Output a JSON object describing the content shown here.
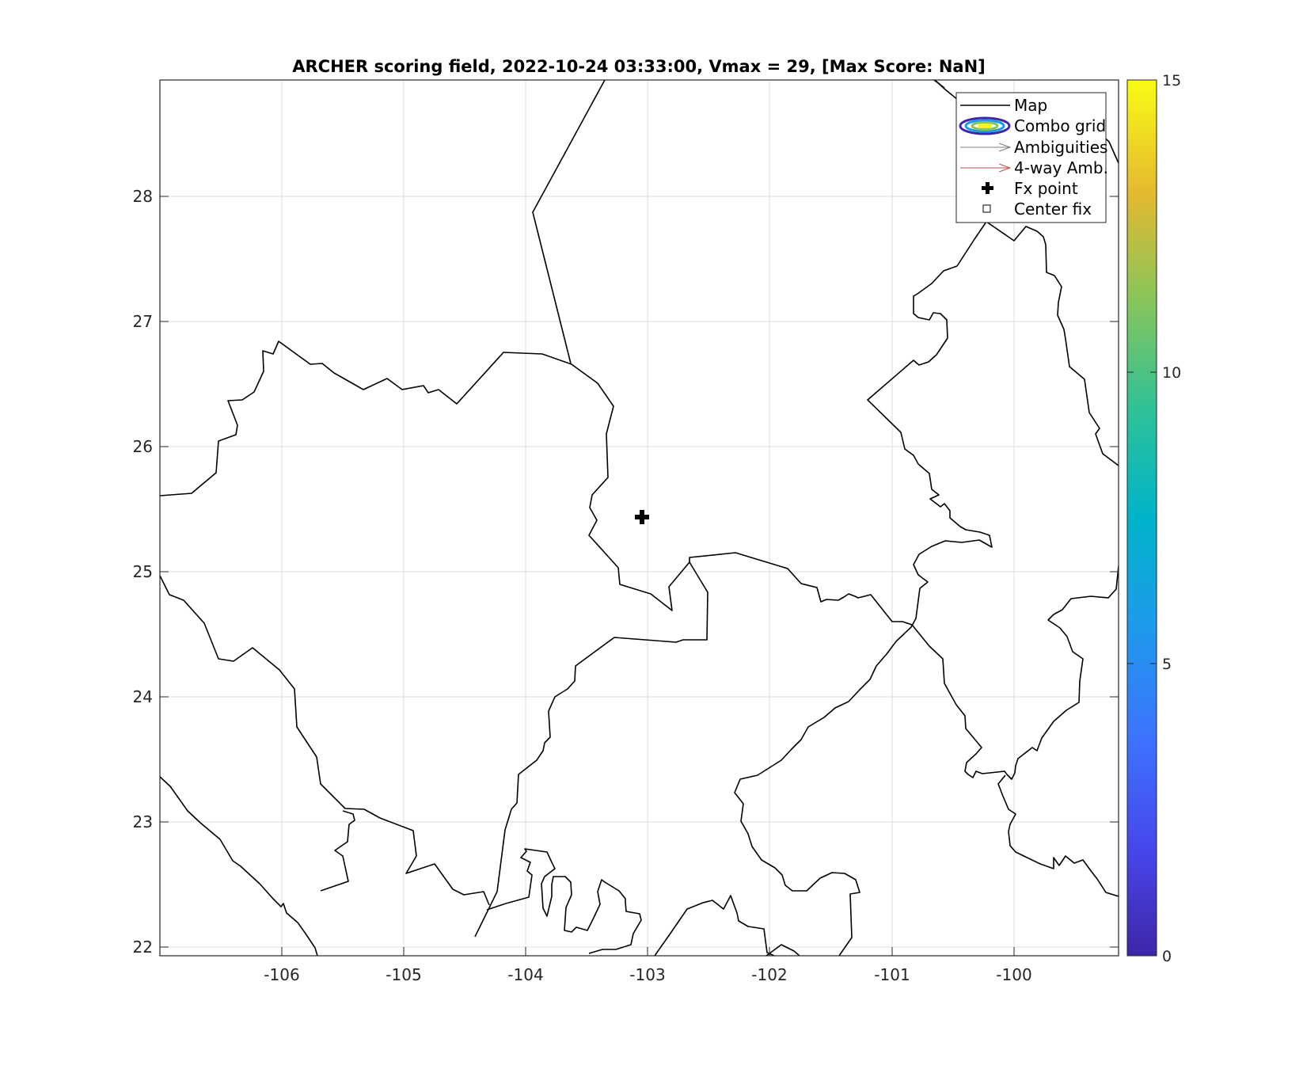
{
  "title": "ARCHER scoring field, 2022-10-24 03:33:00, Vmax = 29, [Max Score: NaN]",
  "x_ticks": [
    "-106",
    "-105",
    "-104",
    "-103",
    "-102",
    "-101",
    "-100"
  ],
  "y_ticks": [
    "28",
    "27",
    "26",
    "25",
    "24",
    "23",
    "22"
  ],
  "colorbar": {
    "ticks": [
      "15",
      "10",
      "5",
      "0"
    ],
    "colormap": "parula"
  },
  "legend": {
    "placement": "top-right",
    "items": [
      {
        "label": "Map",
        "icon": "black-line-icon"
      },
      {
        "label": "Combo grid",
        "icon": "contour-ellipse-icon"
      },
      {
        "label": "Ambiguities",
        "icon": "gray-arrow-icon"
      },
      {
        "label": "4-way Amb.",
        "icon": "red-arrow-icon"
      },
      {
        "label": "Fx point",
        "icon": "plus-marker-icon"
      },
      {
        "label": "Center fix",
        "icon": "square-marker-icon"
      }
    ]
  },
  "map": {
    "lon_range": [
      -107.0,
      -99.15
    ],
    "lat_range": [
      21.93,
      28.93
    ],
    "grid": true,
    "fx_point": {
      "lon": -103.07,
      "lat": 25.42
    }
  }
}
